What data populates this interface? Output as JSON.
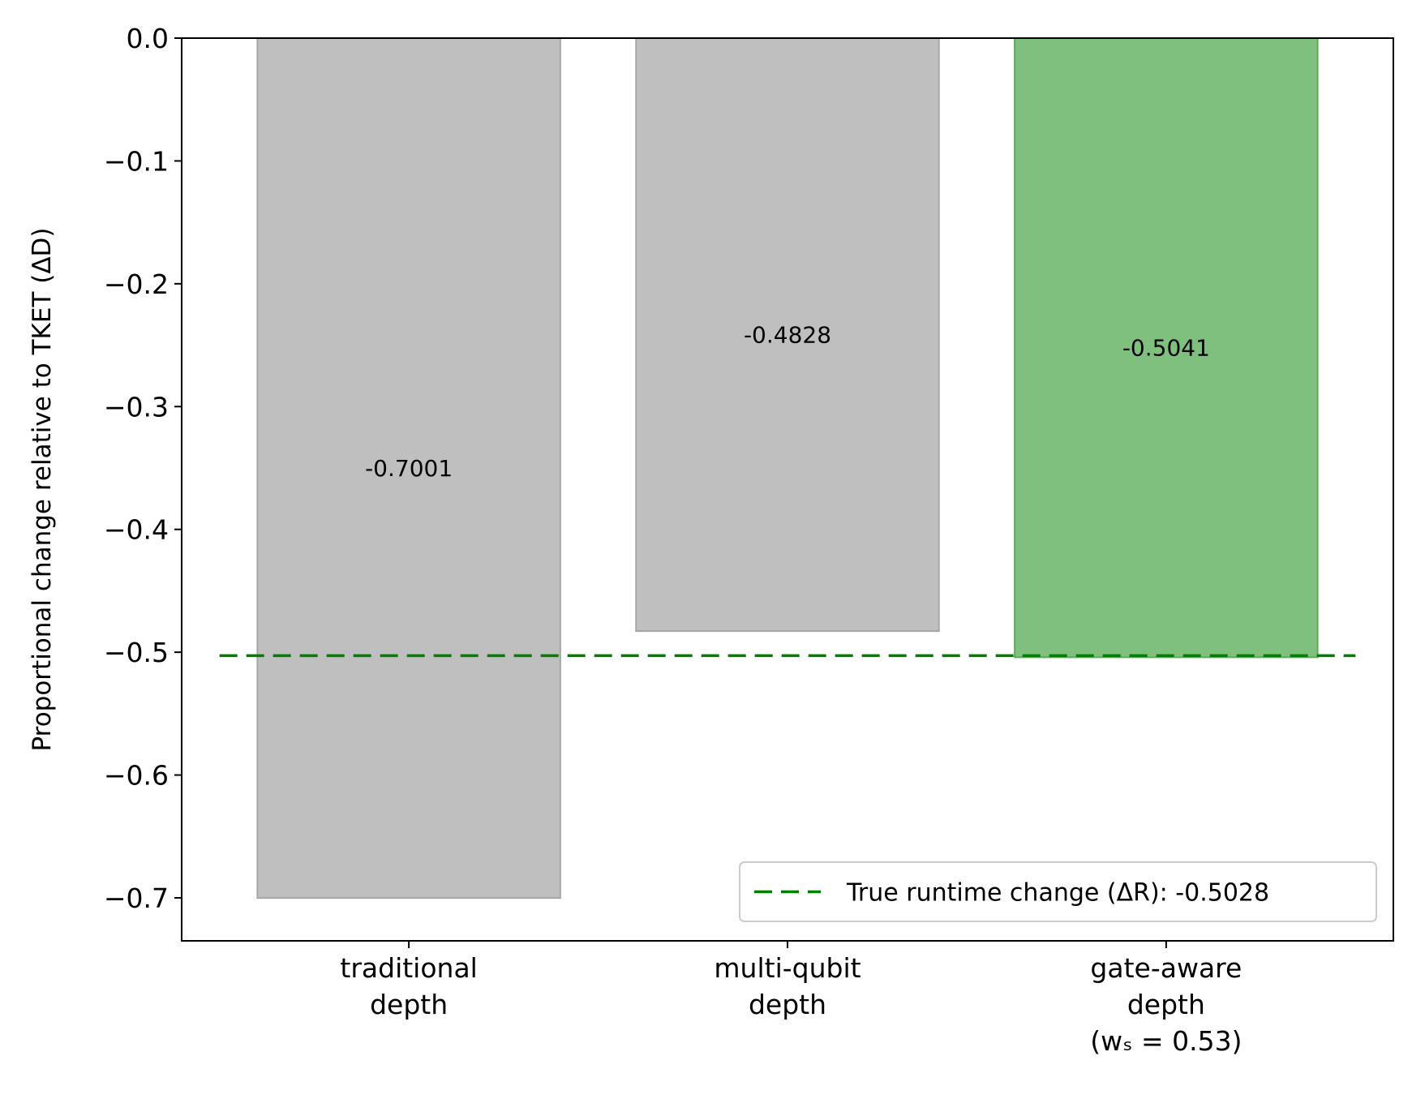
{
  "chart_data": {
    "type": "bar",
    "title": "",
    "xlabel": "",
    "ylabel": "Proportional change relative to TKET (ΔD)",
    "ylim": [
      -0.735,
      0.0
    ],
    "yticks": [
      0.0,
      -0.1,
      -0.2,
      -0.3,
      -0.4,
      -0.5,
      -0.6,
      -0.7
    ],
    "ytick_labels": [
      "0.0",
      "−0.1",
      "−0.2",
      "−0.3",
      "−0.4",
      "−0.5",
      "−0.6",
      "−0.7"
    ],
    "grid": false,
    "categories": [
      [
        "traditional",
        "depth"
      ],
      [
        "multi-qubit",
        "depth"
      ],
      [
        "gate-aware",
        "depth",
        "(wₛ = 0.53)"
      ]
    ],
    "values": [
      -0.7001,
      -0.4828,
      -0.5041
    ],
    "value_labels": [
      "-0.7001",
      "-0.4828",
      "-0.5041"
    ],
    "bar_colors": [
      "#bfbfbf",
      "#bfbfbf",
      "#7fc07f"
    ],
    "bar_edge_colors": [
      "#a6a6a6",
      "#a6a6a6",
      "#5daa5d"
    ],
    "reference_line": {
      "value": -0.5028,
      "style": "dashed",
      "color": "#007f00",
      "legend_label": "True runtime change (ΔR): -0.5028"
    },
    "legend_position": "lower-right"
  }
}
